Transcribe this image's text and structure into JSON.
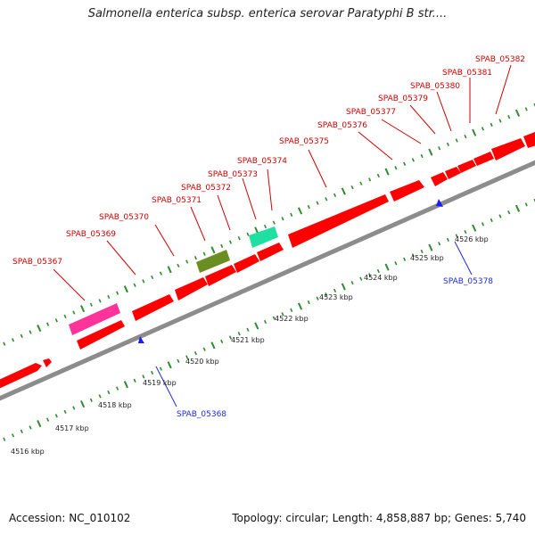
{
  "title": "Salmonella enterica subsp. enterica serovar Paratyphi B str....",
  "footer": {
    "accession": "Accession: NC_010102",
    "summary": "Topology: circular; Length: 4,858,887 bp; Genes: 5,740"
  },
  "colors": {
    "cds": "#ff0000",
    "rna_pink": "#ff3399",
    "green_feature": "#6b8e23",
    "teal_feature": "#1fe0a0",
    "backbone": "#8c8c8c",
    "tick": "#2e8b2e",
    "top_label": "#cc0000",
    "bottom_label": "#1f2bd6",
    "tail_arrow": "#1a1aff"
  },
  "kbp_labels": [
    "4516 kbp",
    "4517 kbp",
    "4518 kbp",
    "4519 kbp",
    "4520 kbp",
    "4521 kbp",
    "4522 kbp",
    "4523 kbp",
    "4524 kbp",
    "4525 kbp",
    "4526 kbp"
  ],
  "genes_top": [
    "SPAB_05367",
    "SPAB_05369",
    "SPAB_05370",
    "SPAB_05371",
    "SPAB_05372",
    "SPAB_05373",
    "SPAB_05374",
    "SPAB_05375",
    "SPAB_05376",
    "SPAB_05377",
    "SPAB_05379",
    "SPAB_05380",
    "SPAB_05381",
    "SPAB_05382"
  ],
  "genes_bottom": [
    "SPAB_05368",
    "SPAB_05378"
  ]
}
